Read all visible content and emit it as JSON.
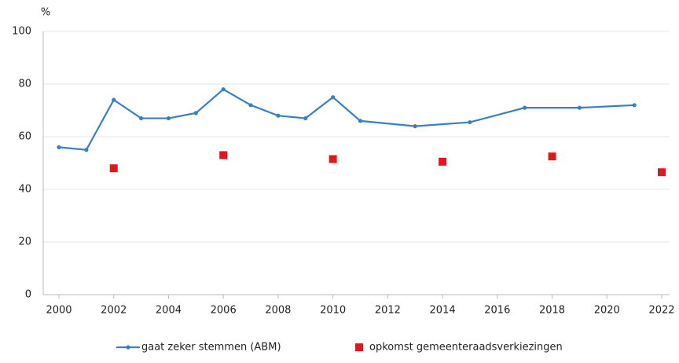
{
  "chart_data": {
    "type": "line",
    "y_label": "%",
    "xlim": [
      2000,
      2022
    ],
    "xticks": [
      2000,
      2002,
      2004,
      2006,
      2008,
      2010,
      2012,
      2014,
      2016,
      2018,
      2020,
      2022
    ],
    "ylim": [
      0,
      100
    ],
    "yticks": [
      0,
      20,
      40,
      60,
      80,
      100
    ],
    "grid": true,
    "series": [
      {
        "name": "gaat zeker stemmen (ABM)",
        "color": "#3a7fc1",
        "kind": "line",
        "x": [
          2000,
          2001,
          2002,
          2003,
          2004,
          2005,
          2006,
          2007,
          2008,
          2009,
          2010,
          2011,
          2013,
          2015,
          2017,
          2019,
          2021
        ],
        "values": [
          56,
          55,
          74,
          67,
          67,
          69,
          78,
          72,
          68,
          67,
          75,
          66,
          64,
          65.5,
          71,
          71,
          72
        ]
      },
      {
        "name": "opkomst gemeenteraadsverkiezingen",
        "color": "#e3161b",
        "kind": "scatter",
        "x": [
          2002,
          2006,
          2010,
          2014,
          2018,
          2022
        ],
        "values": [
          48,
          53,
          51.5,
          50.5,
          52.5,
          46.5
        ]
      }
    ]
  }
}
